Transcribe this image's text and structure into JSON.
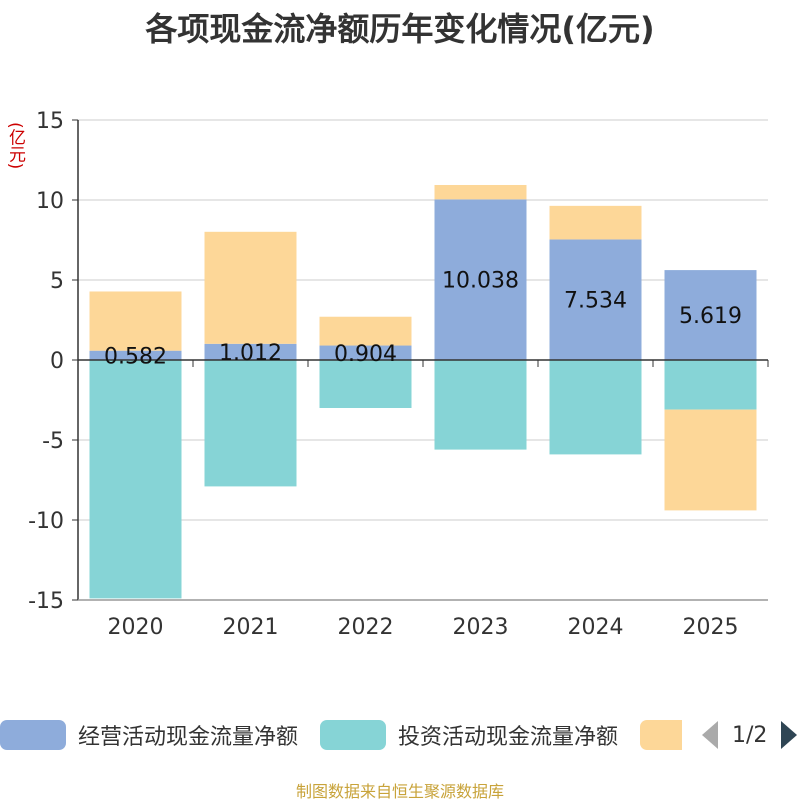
{
  "title": "各项现金流净额历年变化情况(亿元)",
  "unit": "(亿元)",
  "source": "制图数据来自恒生聚源数据库",
  "legend_page": "1/2",
  "colors": {
    "operating": "#8eacdb",
    "investing": "#86d4d6",
    "financing": "#fdd798",
    "axis": "#333333",
    "grid": "#cccccc"
  },
  "chart_data": {
    "type": "bar",
    "stacked": true,
    "title": "各项现金流净额历年变化情况(亿元)",
    "ylabel": "(亿元)",
    "ylim": [
      -15,
      15
    ],
    "yticks": [
      15,
      10,
      5,
      0,
      -5,
      -10,
      -15
    ],
    "categories": [
      "2020",
      "2021",
      "2022",
      "2023",
      "2024",
      "2025"
    ],
    "series": [
      {
        "name": "经营活动现金流量净额",
        "key": "operating",
        "values": [
          0.582,
          1.012,
          0.904,
          10.038,
          7.534,
          5.619
        ],
        "labels": [
          "0.582",
          "1.012",
          "0.904",
          "10.038",
          "7.534",
          "5.619"
        ]
      },
      {
        "name": "投资活动现金流量净额",
        "key": "investing",
        "values": [
          -14.9,
          -7.9,
          -3.0,
          -5.6,
          -5.9,
          -3.1
        ]
      },
      {
        "name": "",
        "key": "financing",
        "values": [
          3.7,
          7.0,
          1.8,
          0.9,
          2.1,
          -6.3
        ]
      }
    ]
  }
}
